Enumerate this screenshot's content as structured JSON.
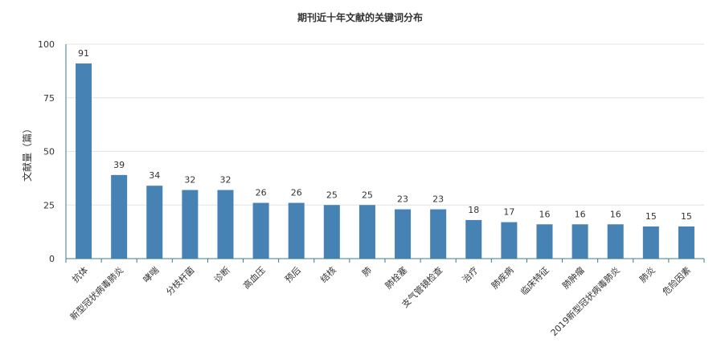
{
  "chart_data": {
    "type": "bar",
    "title": "期刊近十年文献的关键词分布",
    "xlabel": "",
    "ylabel": "文献量（篇）",
    "ylim": [
      0,
      100
    ],
    "yticks": [
      "0",
      "25",
      "50",
      "75",
      "100"
    ],
    "grid": true,
    "color": "#4682b4",
    "categories": [
      "抗体",
      "新型冠状病毒肺炎",
      "哮喘",
      "分枝杆菌",
      "诊断",
      "高血压",
      "预后",
      "结核",
      "肺",
      "肺栓塞",
      "支气管镜检查",
      "治疗",
      "肺疾病",
      "临床特征",
      "肺肿瘤",
      "2019新型冠状病毒肺炎",
      "肺炎",
      "危险因素"
    ],
    "values": [
      91,
      39,
      34,
      32,
      32,
      26,
      26,
      25,
      25,
      23,
      23,
      18,
      17,
      16,
      16,
      16,
      15,
      15
    ]
  }
}
